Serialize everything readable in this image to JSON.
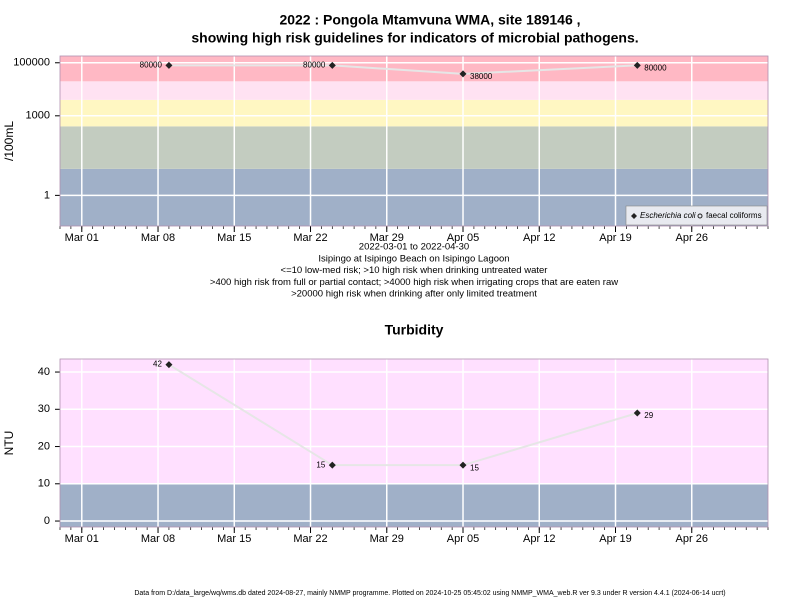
{
  "chart_data": [
    {
      "type": "line",
      "title": "2022 : Pongola Mtamvuna WMA, site 189146 ,",
      "subtitle": "showing high risk guidelines for indicators of microbial pathogens.",
      "ylabel": "/100mL",
      "notes": [
        "2022-03-01 to 2022-04-30",
        "Isipingo at Isipingo Beach on Isipingo Lagoon",
        "<=10 low-med risk; >10 high risk when drinking untreated water",
        ">400 high risk from full or partial contact; >4000 high risk when irrigating crops that are eaten raw",
        ">20000 high risk when drinking after only limited treatment"
      ],
      "log_scale": true,
      "grid": true,
      "legend": "lower right",
      "x": [
        "2022-03-09",
        "2022-03-24",
        "2022-04-05",
        "2022-04-21"
      ],
      "series": [
        {
          "name": "Escherichia coli",
          "color": "#222222",
          "marker": "diamond",
          "values": [
            80000,
            80000,
            38000,
            80000
          ]
        },
        {
          "name": "faecal coliforms",
          "color": "#222222",
          "marker": "circle",
          "values": [
            null,
            null,
            null,
            null
          ]
        }
      ],
      "line_color": "#e6e6e6",
      "xlim": [
        "2022-02-27",
        "2022-05-03"
      ],
      "xticks": [
        {
          "value": "2022-03-01",
          "label": "Mar 01"
        },
        {
          "value": "2022-03-08",
          "label": "Mar 08"
        },
        {
          "value": "2022-03-15",
          "label": "Mar 15"
        },
        {
          "value": "2022-03-22",
          "label": "Mar 22"
        },
        {
          "value": "2022-03-29",
          "label": "Mar 29"
        },
        {
          "value": "2022-04-05",
          "label": "Apr 05"
        },
        {
          "value": "2022-04-12",
          "label": "Apr 12"
        },
        {
          "value": "2022-04-19",
          "label": "Apr 19"
        },
        {
          "value": "2022-04-26",
          "label": "Apr 26"
        }
      ],
      "ylim": [
        0.07,
        180000
      ],
      "yticks": [
        1,
        1000,
        100000
      ],
      "band_breaks": [
        10,
        400,
        4000,
        20000
      ],
      "band_colors": [
        "#a0b0c8",
        "#c3ccc0",
        "#fff7c2",
        "#ffe2f2",
        "#ffb8c4"
      ]
    },
    {
      "type": "line",
      "title": "Turbidity",
      "ylabel": "NTU",
      "grid": true,
      "x": [
        "2022-03-09",
        "2022-03-24",
        "2022-04-05",
        "2022-04-21"
      ],
      "series": [
        {
          "name": "Turbidity",
          "color": "#222222",
          "marker": "diamond",
          "values": [
            42,
            15,
            15,
            29
          ]
        }
      ],
      "line_color": "#e6e6e6",
      "xlim": [
        "2022-02-27",
        "2022-05-03"
      ],
      "xticks": [
        {
          "value": "2022-03-01",
          "label": "Mar 01"
        },
        {
          "value": "2022-03-08",
          "label": "Mar 08"
        },
        {
          "value": "2022-03-15",
          "label": "Mar 15"
        },
        {
          "value": "2022-03-22",
          "label": "Mar 22"
        },
        {
          "value": "2022-03-29",
          "label": "Mar 29"
        },
        {
          "value": "2022-04-05",
          "label": "Apr 05"
        },
        {
          "value": "2022-04-12",
          "label": "Apr 12"
        },
        {
          "value": "2022-04-19",
          "label": "Apr 19"
        },
        {
          "value": "2022-04-26",
          "label": "Apr 26"
        }
      ],
      "ylim": [
        -1.6,
        43.5
      ],
      "yticks": [
        0,
        10,
        20,
        30,
        40
      ],
      "band_breaks": [
        10
      ],
      "band_colors": [
        "#a0b0c8",
        "#ffe0ff"
      ]
    }
  ],
  "footer": "Data from D:/data_large/wq/wms.db dated 2024-08-27, mainly NMMP programme. Plotted on 2024-10-25 05:45:02 using NMMP_WMA_web.R ver 9.3 under R version 4.4.1 (2024-06-14 ucrt)"
}
